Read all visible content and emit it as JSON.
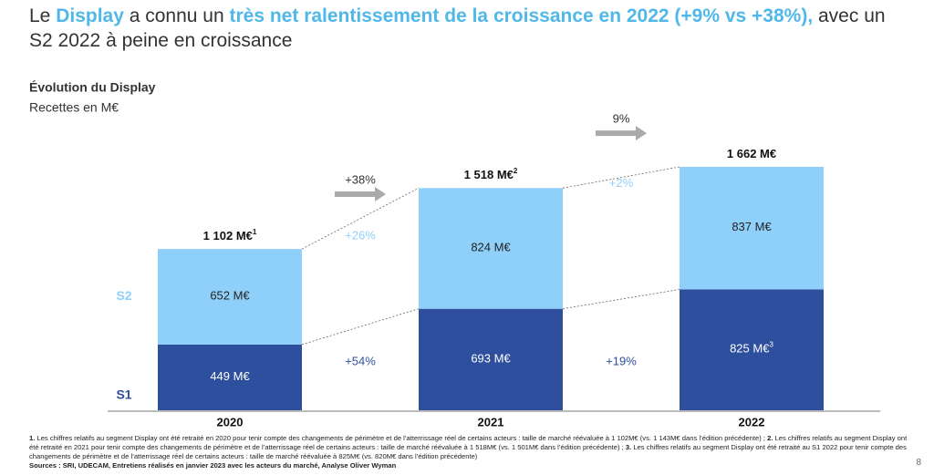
{
  "header": {
    "title": [
      {
        "text": "Le ",
        "highlight": false
      },
      {
        "text": "Display",
        "highlight": true
      },
      {
        "text": " a connu un ",
        "highlight": false
      },
      {
        "text": "très net ralentissement de la croissance en 2022 (+9% vs +38%),",
        "highlight": true
      },
      {
        "text": " avec un S2 2022 à peine en croissance",
        "highlight": false
      }
    ],
    "highlight_color": "#4fb8e8"
  },
  "chart_data": {
    "type": "stacked_bar",
    "title": "Évolution du Display",
    "subtitle": "Recettes en M€",
    "categories": [
      "2020",
      "2021",
      "2022"
    ],
    "series": [
      {
        "name": "S1",
        "color": "#2e4f9e",
        "values": [
          449,
          693,
          825
        ],
        "value_labels": [
          "449 M€",
          "693 M€",
          "825 M€"
        ],
        "notes": [
          null,
          null,
          "3"
        ]
      },
      {
        "name": "S2",
        "color": "#8fd0fb",
        "values": [
          652,
          824,
          837
        ],
        "value_labels": [
          "652 M€",
          "824 M€",
          "837 M€"
        ],
        "notes": [
          null,
          null,
          null
        ]
      }
    ],
    "totals": {
      "values": [
        1102,
        1518,
        1662
      ],
      "value_labels": [
        "1 102 M€",
        "1 518 M€",
        "1 662 M€"
      ],
      "notes": [
        "1",
        "2",
        null
      ]
    },
    "growth": {
      "total": [
        "+38%",
        "9%"
      ],
      "S2": [
        "+26%",
        "+2%"
      ],
      "S1": [
        "+54%",
        "+19%"
      ]
    }
  },
  "footnotes": [
    {
      "number": "1.",
      "text": "Les chiffres relatifs au segment Display ont été retraité en 2020 pour tenir compte des changements de périmètre et de l’atterrissage réel de certains acteurs : taille de marché réévaluée à 1 102M€ (vs. 1 143M€ dans l’édition précédente) ;"
    },
    {
      "number": "2.",
      "text": "Les chiffres relatifs au segment Display ont été retraité en 2021 pour tenir compte des changements de périmètre et de l’atterrissage réel de certains acteurs : taille de marché réévaluée à 1 518M€ (vs. 1 501M€ dans l’édition précédente) ;"
    },
    {
      "number": "3.",
      "text": "Les chiffres relatifs au segment Display ont été retraité au S1 2022 pour tenir compte des changements de périmètre et de l’atterrissage réel de certains acteurs : taille de marché réévaluée à 825M€ (vs. 820M€ dans l’édition précédente)"
    }
  ],
  "sources": "Sources : SRI, UDECAM, Entretiens réalisés en janvier 2023 avec les acteurs du marché, Analyse Oliver Wyman",
  "page_number": "8"
}
